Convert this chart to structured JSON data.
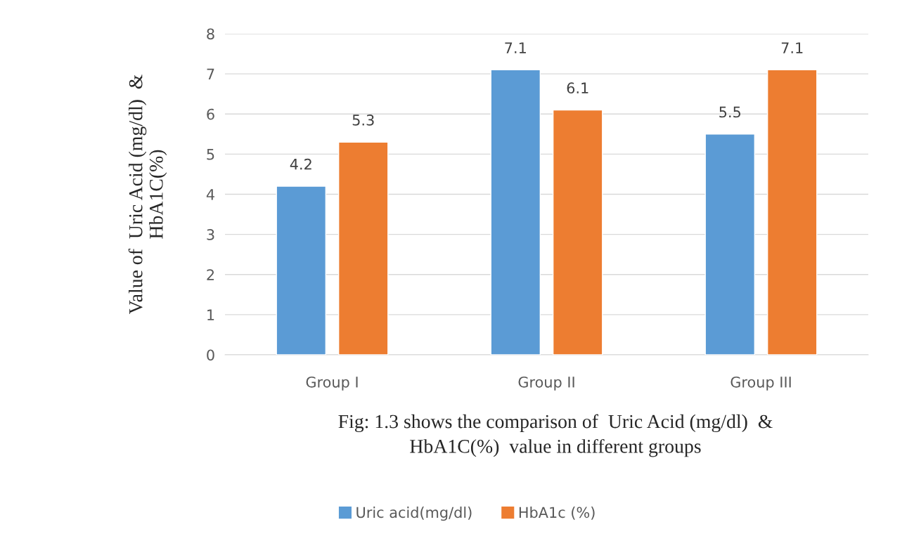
{
  "chart_data": {
    "type": "bar",
    "ylabel": "Value of  Uric Acid (mg/dl)  &\nHbA1C(%)",
    "categories": [
      "Group I",
      "Group II",
      "Group III"
    ],
    "series": [
      {
        "name": "Uric acid(mg/dl)",
        "color": "#5b9bd5",
        "values": [
          4.2,
          7.1,
          5.5
        ]
      },
      {
        "name": "HbA1c (%)",
        "color": "#ed7d31",
        "values": [
          5.3,
          6.1,
          7.1
        ]
      }
    ],
    "ylim": [
      0,
      8
    ],
    "yticks": [
      0,
      1,
      2,
      3,
      4,
      5,
      6,
      7,
      8
    ],
    "grid": "y",
    "legend": "bottom",
    "data_labels": true,
    "annotations": [
      "Fig: 1.3 shows the comparison of  Uric Acid (mg/dl)  &\nHbA1C(%)  value in different groups"
    ]
  }
}
